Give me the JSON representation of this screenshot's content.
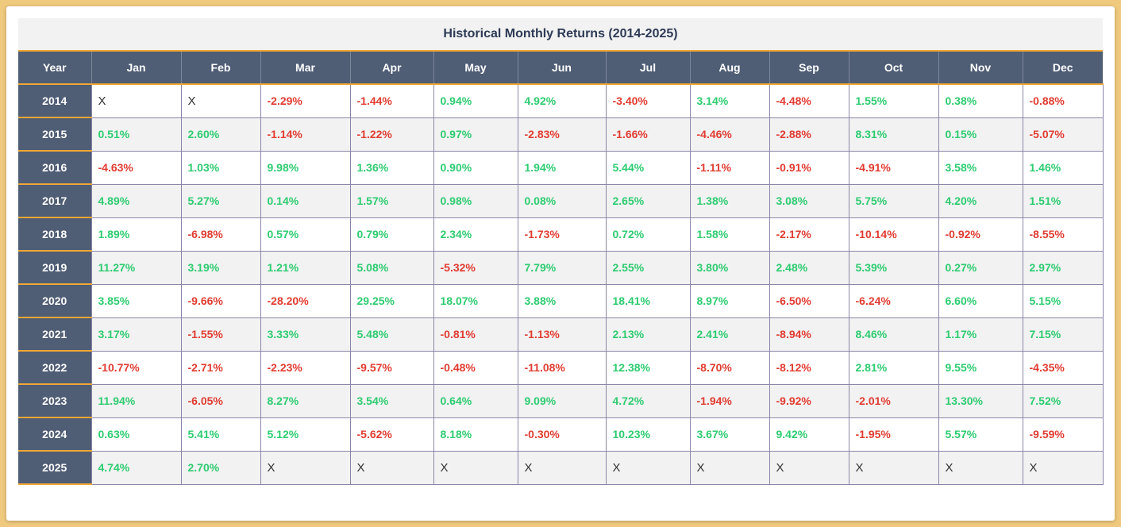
{
  "title": "Historical Monthly Returns (2014-2025)",
  "colors": {
    "positive": "#2ecc71",
    "negative": "#e03c31",
    "header": "#4f5d75",
    "accent": "#f0a734"
  },
  "columns": [
    "Year",
    "Jan",
    "Feb",
    "Mar",
    "Apr",
    "May",
    "Jun",
    "Jul",
    "Aug",
    "Sep",
    "Oct",
    "Nov",
    "Dec"
  ],
  "rows": [
    {
      "year": "2014",
      "values": [
        "X",
        "X",
        "-2.29%",
        "-1.44%",
        "0.94%",
        "4.92%",
        "-3.40%",
        "3.14%",
        "-4.48%",
        "1.55%",
        "0.38%",
        "-0.88%"
      ]
    },
    {
      "year": "2015",
      "values": [
        "0.51%",
        "2.60%",
        "-1.14%",
        "-1.22%",
        "0.97%",
        "-2.83%",
        "-1.66%",
        "-4.46%",
        "-2.88%",
        "8.31%",
        "0.15%",
        "-5.07%"
      ]
    },
    {
      "year": "2016",
      "values": [
        "-4.63%",
        "1.03%",
        "9.98%",
        "1.36%",
        "0.90%",
        "1.94%",
        "5.44%",
        "-1.11%",
        "-0.91%",
        "-4.91%",
        "3.58%",
        "1.46%"
      ]
    },
    {
      "year": "2017",
      "values": [
        "4.89%",
        "5.27%",
        "0.14%",
        "1.57%",
        "0.98%",
        "0.08%",
        "2.65%",
        "1.38%",
        "3.08%",
        "5.75%",
        "4.20%",
        "1.51%"
      ]
    },
    {
      "year": "2018",
      "values": [
        "1.89%",
        "-6.98%",
        "0.57%",
        "0.79%",
        "2.34%",
        "-1.73%",
        "0.72%",
        "1.58%",
        "-2.17%",
        "-10.14%",
        "-0.92%",
        "-8.55%"
      ]
    },
    {
      "year": "2019",
      "values": [
        "11.27%",
        "3.19%",
        "1.21%",
        "5.08%",
        "-5.32%",
        "7.79%",
        "2.55%",
        "3.80%",
        "2.48%",
        "5.39%",
        "0.27%",
        "2.97%"
      ]
    },
    {
      "year": "2020",
      "values": [
        "3.85%",
        "-9.66%",
        "-28.20%",
        "29.25%",
        "18.07%",
        "3.88%",
        "18.41%",
        "8.97%",
        "-6.50%",
        "-6.24%",
        "6.60%",
        "5.15%"
      ]
    },
    {
      "year": "2021",
      "values": [
        "3.17%",
        "-1.55%",
        "3.33%",
        "5.48%",
        "-0.81%",
        "-1.13%",
        "2.13%",
        "2.41%",
        "-8.94%",
        "8.46%",
        "1.17%",
        "7.15%"
      ]
    },
    {
      "year": "2022",
      "values": [
        "-10.77%",
        "-2.71%",
        "-2.23%",
        "-9.57%",
        "-0.48%",
        "-11.08%",
        "12.38%",
        "-8.70%",
        "-8.12%",
        "2.81%",
        "9.55%",
        "-4.35%"
      ]
    },
    {
      "year": "2023",
      "values": [
        "11.94%",
        "-6.05%",
        "8.27%",
        "3.54%",
        "0.64%",
        "9.09%",
        "4.72%",
        "-1.94%",
        "-9.92%",
        "-2.01%",
        "13.30%",
        "7.52%"
      ]
    },
    {
      "year": "2024",
      "values": [
        "0.63%",
        "5.41%",
        "5.12%",
        "-5.62%",
        "8.18%",
        "-0.30%",
        "10.23%",
        "3.67%",
        "9.42%",
        "-1.95%",
        "5.57%",
        "-9.59%"
      ]
    },
    {
      "year": "2025",
      "values": [
        "4.74%",
        "2.70%",
        "X",
        "X",
        "X",
        "X",
        "X",
        "X",
        "X",
        "X",
        "X",
        "X"
      ]
    }
  ]
}
